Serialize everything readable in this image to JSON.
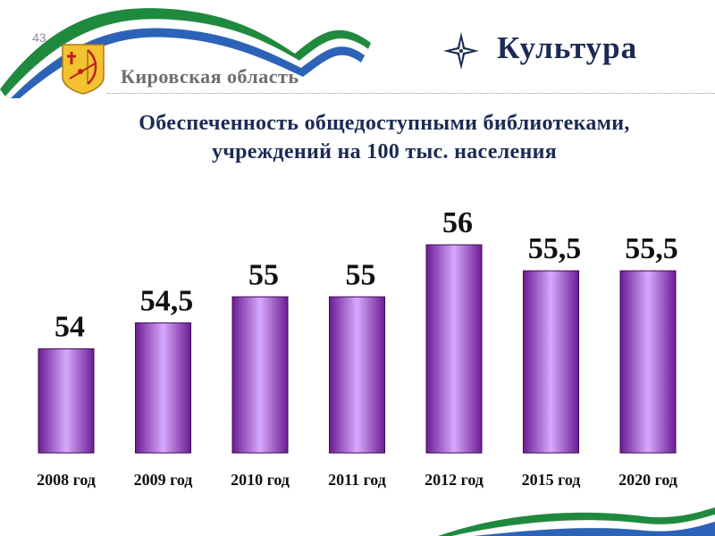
{
  "header": {
    "slide_number": "43",
    "region_name": "Кировская область",
    "section_title": "Культура"
  },
  "colors": {
    "bar_center": "#d7a8ff",
    "bar_edge": "#6c1c92",
    "title": "#1b2b55",
    "ribbon_green": "#1f8a3e",
    "ribbon_blue": "#2c63b8"
  },
  "icons": [
    "coat-of-arms-icon",
    "compass-star-icon"
  ],
  "chart_data": {
    "type": "bar",
    "title": "Обеспеченность общедоступными библиотеками, учреждений на 100 тыс. населения",
    "title_lines": [
      "Обеспеченность общедоступными библиотеками,",
      "учреждений на 100 тыс. населения"
    ],
    "categories": [
      "2008 год",
      "2009 год",
      "2010 год",
      "2011 год",
      "2012 год",
      "2015 год",
      "2020 год"
    ],
    "values": [
      54,
      54.5,
      55,
      55,
      56,
      55.5,
      55.5
    ],
    "value_labels": [
      "54",
      "54,5",
      "55",
      "55",
      "56",
      "55,5",
      "55,5"
    ],
    "xlabel": "",
    "ylabel": "",
    "ylim": [
      52,
      56.5
    ],
    "grid": false,
    "legend": false
  }
}
